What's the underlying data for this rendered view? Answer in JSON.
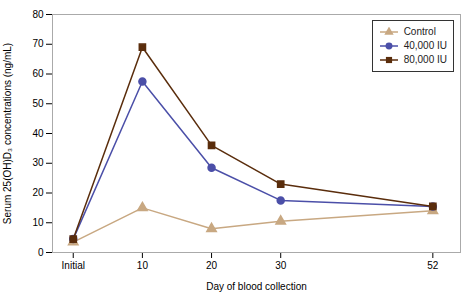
{
  "chart_data": {
    "type": "line",
    "x": [
      0,
      10,
      20,
      30,
      52
    ],
    "xlim": [
      -3,
      56
    ],
    "xticks": [
      {
        "value": 0,
        "label": "Initial"
      },
      10,
      20,
      30,
      52
    ],
    "ylim": [
      0,
      80
    ],
    "yticks": [
      0,
      10,
      20,
      30,
      40,
      50,
      60,
      70,
      80
    ],
    "xlabel": "Day of blood collection",
    "ylabel": "Serum 25(OH)D₃ concentrations (ng/mL)",
    "grid": false,
    "legend": "upper right",
    "series": [
      {
        "name": "Control",
        "color": "#C8A882",
        "marker": "triangle",
        "values": [
          3.5,
          15.0,
          8.0,
          10.5,
          14.0
        ]
      },
      {
        "name": "40,000 IU",
        "color": "#4B4FA8",
        "marker": "circle",
        "values": [
          4.5,
          57.5,
          28.5,
          17.5,
          15.5
        ]
      },
      {
        "name": "80,000 IU",
        "color": "#5A2D0C",
        "marker": "square",
        "values": [
          4.5,
          69.0,
          36.0,
          23.0,
          15.5
        ]
      }
    ]
  }
}
